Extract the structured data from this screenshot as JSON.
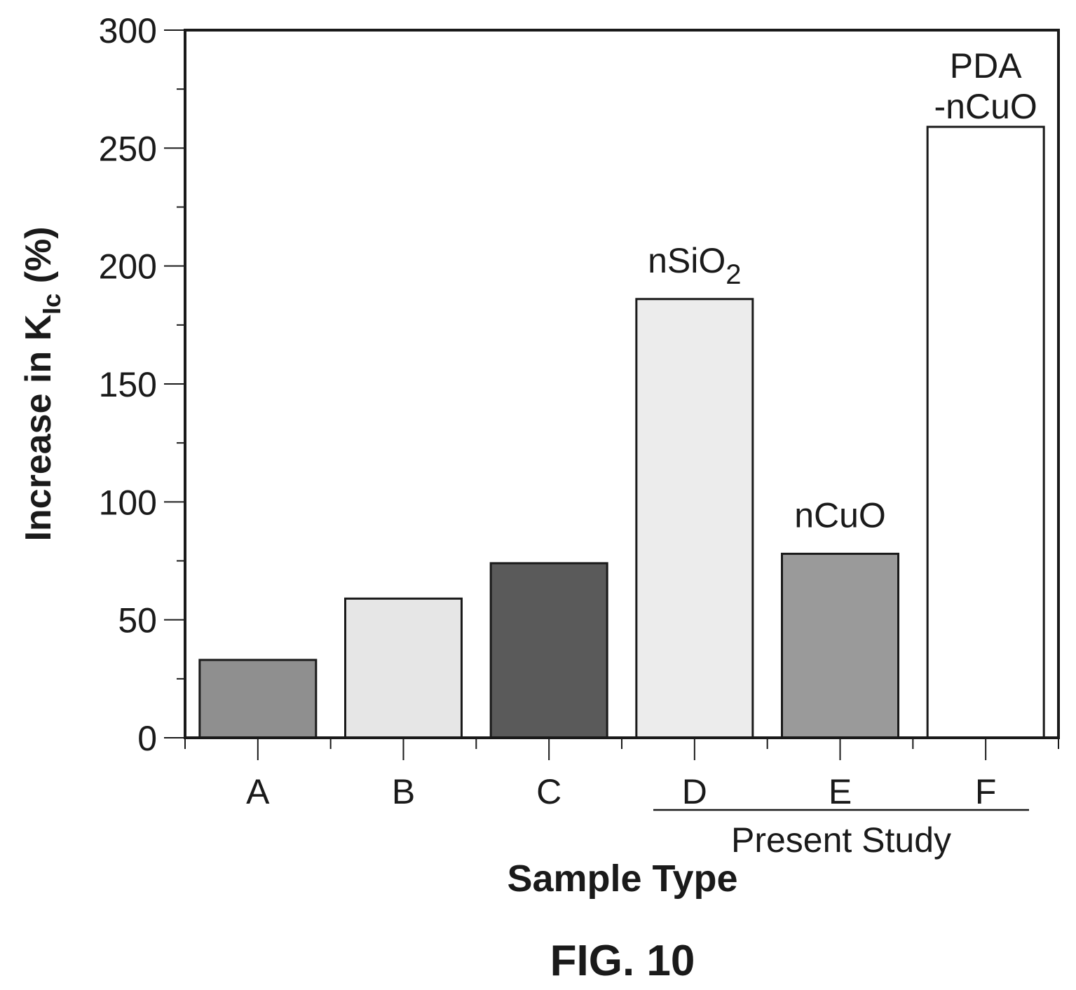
{
  "figure_caption": "FIG. 10",
  "chart_data": {
    "type": "bar",
    "categories": [
      "A",
      "B",
      "C",
      "D",
      "E",
      "F"
    ],
    "values": [
      33,
      59,
      74,
      186,
      78,
      259
    ],
    "bar_fills": [
      "#8f8f8f",
      "#e6e6e6",
      "#5a5a5a",
      "#ececec",
      "#9a9a9a",
      "#ffffff"
    ],
    "bar_annotations": [
      {
        "category": "D",
        "text": "nSiO",
        "subscript": "2"
      },
      {
        "category": "E",
        "text": "nCuO"
      },
      {
        "category": "F",
        "lines": [
          "PDA",
          "-nCuO"
        ]
      }
    ],
    "xlabel": "Sample Type",
    "ylabel": {
      "prefix": "Increase in ",
      "symbol": "K",
      "subscript": "Ic",
      "suffix": " (%)"
    },
    "ylim": [
      0,
      300
    ],
    "yticks": [
      0,
      50,
      100,
      150,
      200,
      250,
      300
    ],
    "yminor_step": 25,
    "group_bracket": {
      "categories": [
        "D",
        "E",
        "F"
      ],
      "label": "Present Study"
    },
    "grid": false,
    "legend": "none"
  }
}
